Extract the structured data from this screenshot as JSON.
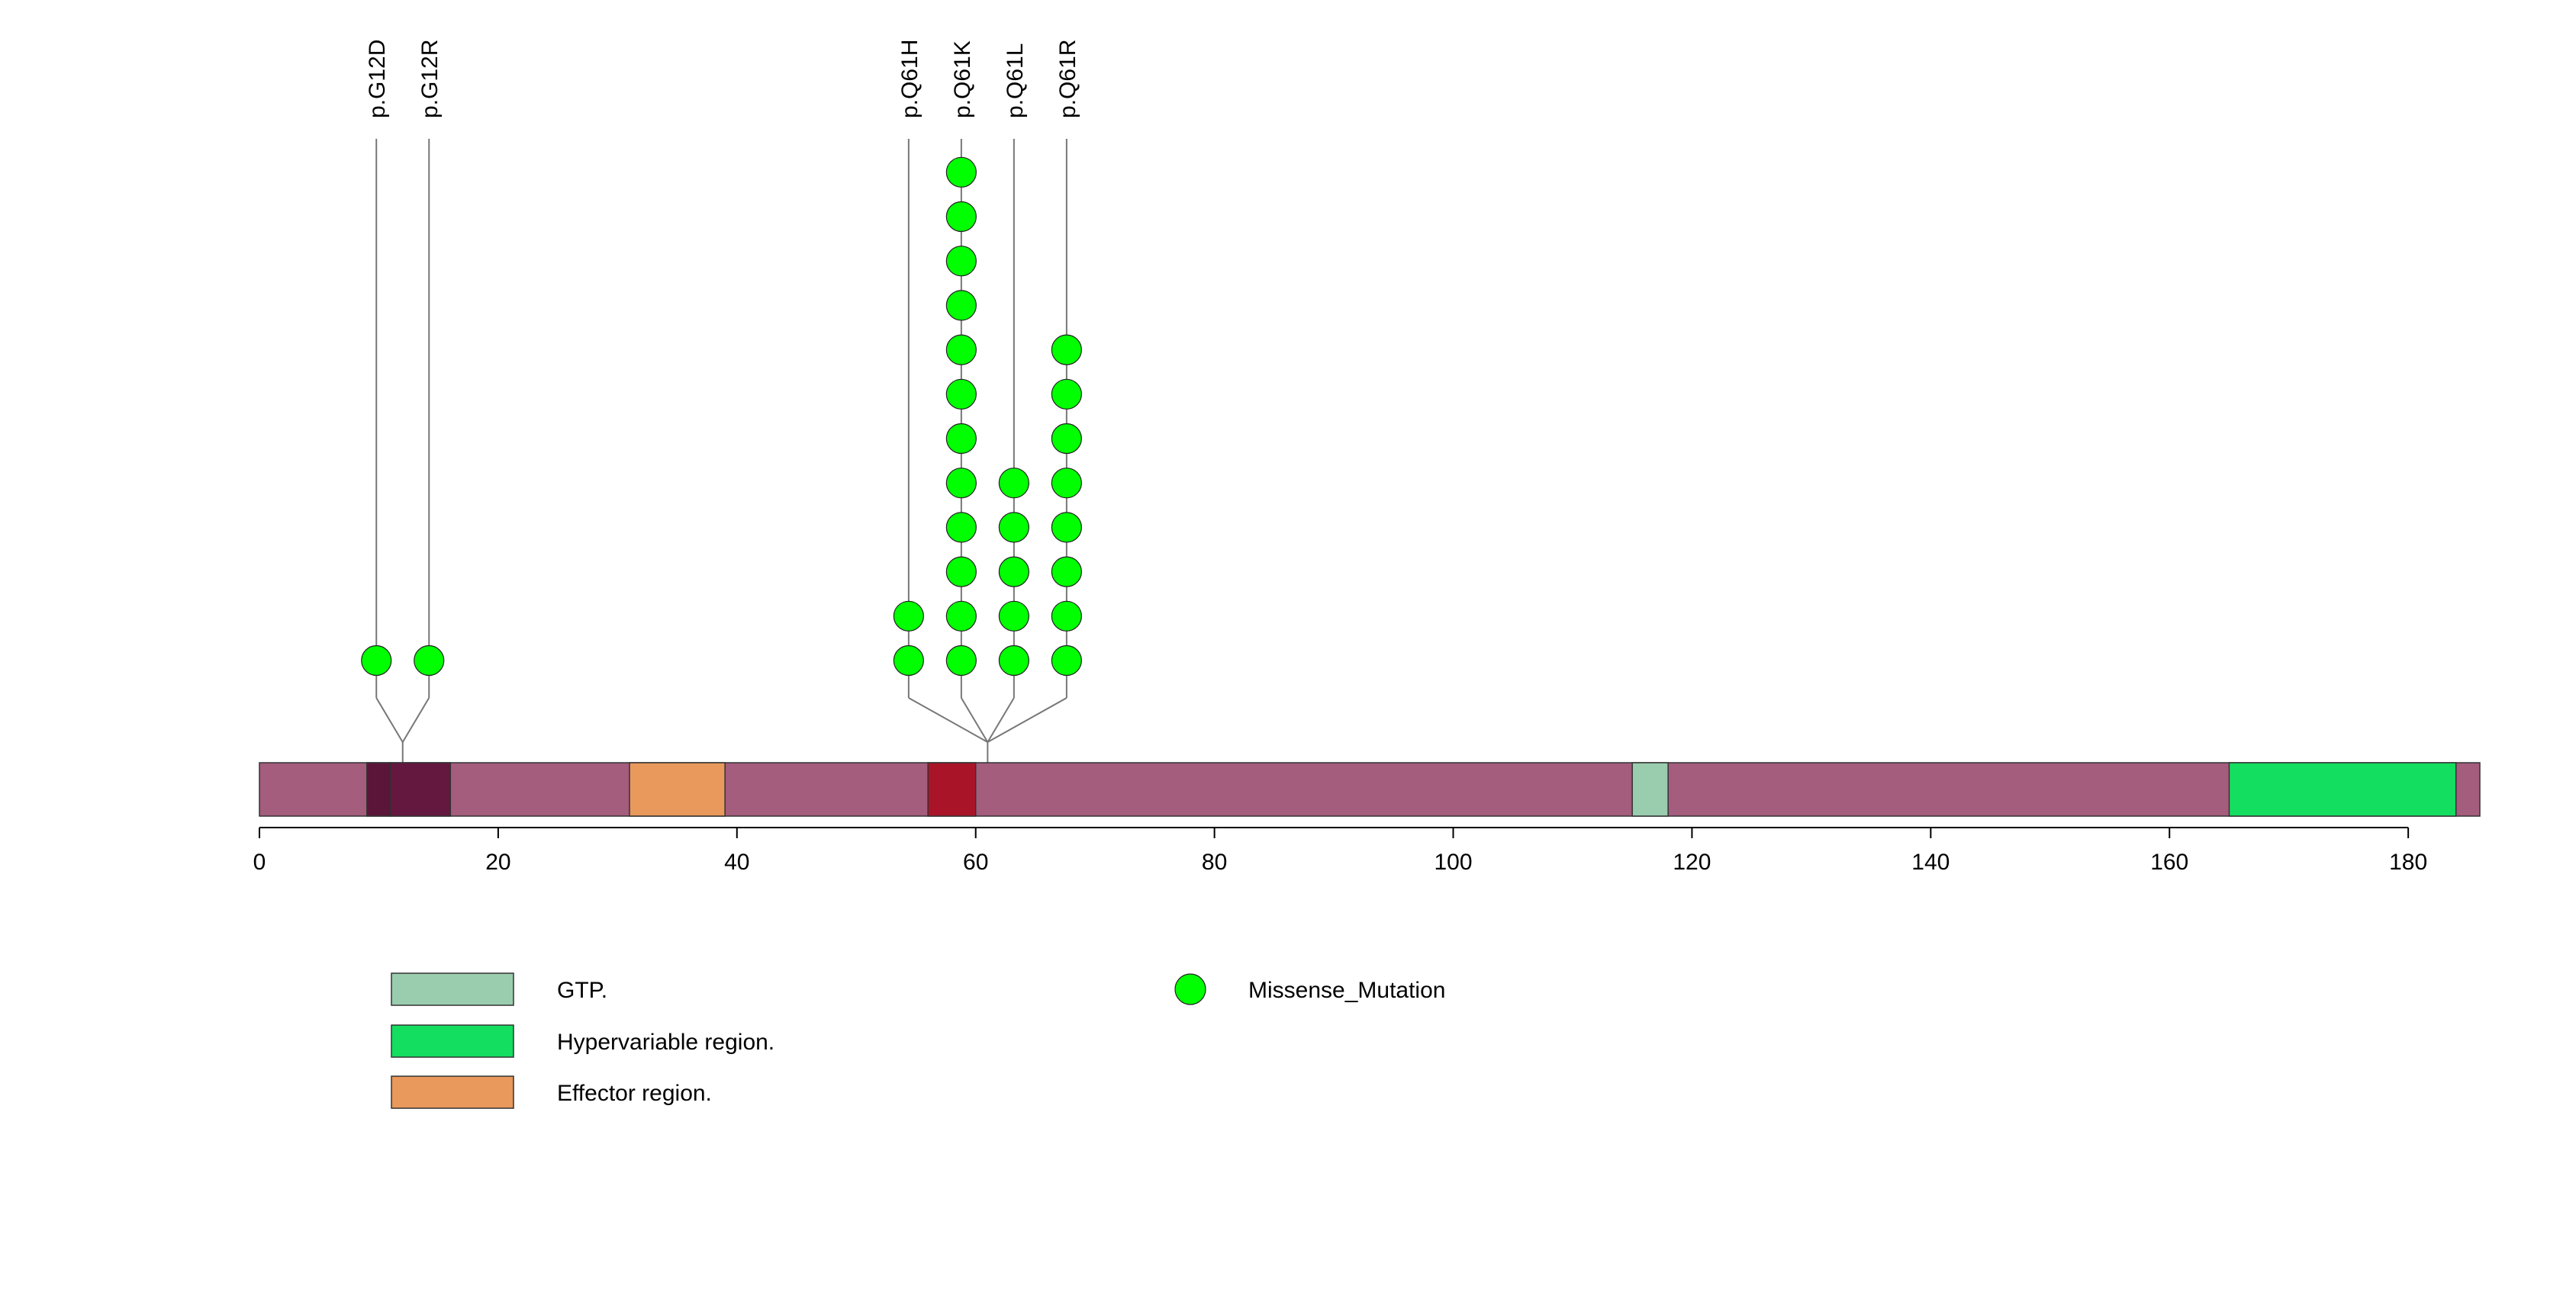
{
  "chart_data": {
    "type": "lollipop",
    "title": "",
    "protein_length": 186,
    "axis": {
      "range": [
        0,
        186
      ],
      "ticks": [
        0,
        20,
        40,
        60,
        80,
        100,
        120,
        140,
        160,
        180
      ],
      "tick_labels": [
        "0",
        "20",
        "40",
        "60",
        "80",
        "100",
        "120",
        "140",
        "160",
        "180"
      ]
    },
    "backbone_color": "#a45d7c",
    "domains": [
      {
        "name": "",
        "start": 9,
        "end": 11,
        "color": "#5a1538"
      },
      {
        "name": "",
        "start": 11,
        "end": 16,
        "color": "#64173f"
      },
      {
        "name": "Effector region.",
        "start": 31,
        "end": 39,
        "color": "#e8995b"
      },
      {
        "name": "",
        "start": 56,
        "end": 60,
        "color": "#aa1428"
      },
      {
        "name": "GTP.",
        "start": 115,
        "end": 118,
        "color": "#9acdae"
      },
      {
        "name": "Hypervariable region.",
        "start": 165,
        "end": 184,
        "color": "#14de60"
      }
    ],
    "mutations": [
      {
        "label": "p.G12D",
        "position": 12,
        "count": 1,
        "type": "Missense_Mutation"
      },
      {
        "label": "p.G12R",
        "position": 12,
        "count": 1,
        "type": "Missense_Mutation"
      },
      {
        "label": "p.Q61H",
        "position": 61,
        "count": 2,
        "type": "Missense_Mutation"
      },
      {
        "label": "p.Q61K",
        "position": 61,
        "count": 12,
        "type": "Missense_Mutation"
      },
      {
        "label": "p.Q61L",
        "position": 61,
        "count": 5,
        "type": "Missense_Mutation"
      },
      {
        "label": "p.Q61R",
        "position": 61,
        "count": 8,
        "type": "Missense_Mutation"
      }
    ],
    "domain_legend": [
      {
        "label": "GTP.",
        "color": "#9acdae"
      },
      {
        "label": "Hypervariable region.",
        "color": "#14de60"
      },
      {
        "label": "Effector region.",
        "color": "#e8995b"
      }
    ],
    "mutation_legend": [
      {
        "label": "Missense_Mutation",
        "color": "#00ff00"
      }
    ]
  }
}
